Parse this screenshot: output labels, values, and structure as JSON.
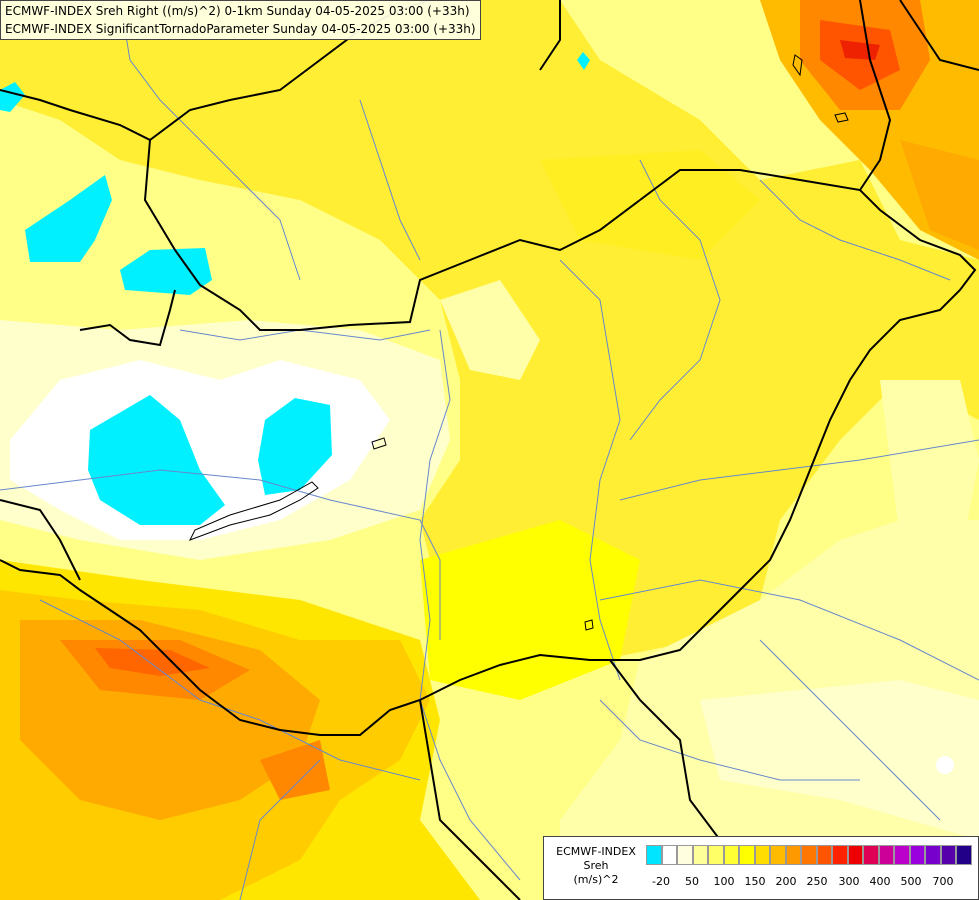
{
  "title": {
    "line1": "ECMWF-INDEX Sreh Right ((m/s)^2) 0-1km Sunday 04-05-2025 03:00 (+33h)",
    "line2": "ECMWF-INDEX SignificantTornadoParameter Sunday 04-05-2025 03:00 (+33h)"
  },
  "legend": {
    "line1": "ECMWF-INDEX",
    "line2": "Sreh",
    "line3": "(m/s)^2",
    "colors": [
      "#00e5ff",
      "#ffffff",
      "#ffffe0",
      "#ffff99",
      "#ffff66",
      "#ffff33",
      "#ffff00",
      "#ffdd00",
      "#ffbb00",
      "#ff9900",
      "#ff7700",
      "#ff5500",
      "#ff2200",
      "#ee0000",
      "#dd0055",
      "#cc0099",
      "#bb00cc",
      "#9900dd",
      "#7700cc",
      "#5500aa",
      "#220088"
    ],
    "tick_labels": [
      "-20",
      "50",
      "100",
      "150",
      "200",
      "250",
      "300",
      "400",
      "500",
      "700"
    ]
  }
}
